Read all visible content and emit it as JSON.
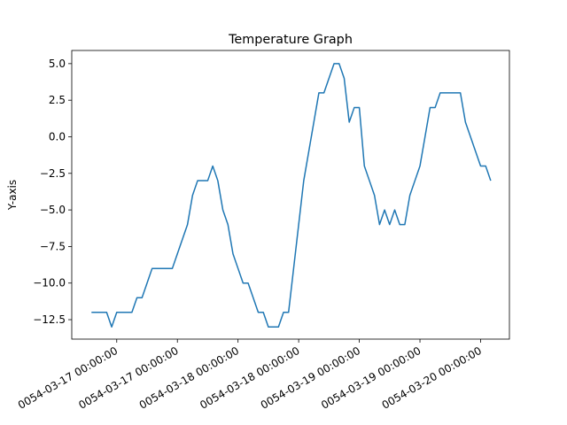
{
  "chart_data": {
    "type": "line",
    "title": "Temperature Graph",
    "y_label": "Y-axis",
    "color": "#1f77b4",
    "x": [
      -5,
      -4,
      -3,
      -2,
      -1,
      0,
      1,
      2,
      3,
      4,
      5,
      6,
      7,
      8,
      9,
      10,
      11,
      12,
      13,
      14,
      15,
      16,
      17,
      18,
      19,
      20,
      21,
      22,
      23,
      24,
      25,
      26,
      27,
      28,
      29,
      30,
      31,
      32,
      33,
      34,
      35,
      36,
      37,
      38,
      39,
      40,
      41,
      42,
      43,
      44,
      45,
      46,
      47,
      48,
      49,
      50,
      51,
      52,
      53,
      54,
      55,
      56,
      57,
      58,
      59,
      60,
      61,
      62,
      63,
      64,
      65,
      66,
      67,
      68,
      69,
      70,
      71,
      72,
      73,
      74
    ],
    "values": [
      -12,
      -12,
      -12,
      -12,
      -13,
      -12,
      -12,
      -12,
      -12,
      -11,
      -11,
      -10,
      -9,
      -9,
      -9,
      -9,
      -9,
      -8,
      -7,
      -6,
      -4,
      -3,
      -3,
      -3,
      -2,
      -3,
      -5,
      -6,
      -8,
      -9,
      -10,
      -10,
      -11,
      -12,
      -12,
      -13,
      -13,
      -13,
      -12,
      -12,
      -9,
      -6,
      -3,
      -1,
      1,
      3,
      3,
      4,
      5,
      5,
      4,
      1,
      2,
      2,
      -2,
      -3,
      -4,
      -6,
      -5,
      -6,
      -5,
      -6,
      -6,
      -4,
      -3,
      -2,
      0,
      2,
      2,
      3,
      3,
      3,
      3,
      3,
      1,
      0,
      -1,
      -2,
      -2,
      -3
    ],
    "xlim": [
      -8.9,
      77.7
    ],
    "xticks": [
      {
        "value": 0,
        "label": "0054-03-17 00:00:00"
      },
      {
        "value": 12,
        "label": "0054-03-17 00:00:00"
      },
      {
        "value": 24,
        "label": "0054-03-18 00:00:00"
      },
      {
        "value": 36,
        "label": "0054-03-18 00:00:00"
      },
      {
        "value": 48,
        "label": "0054-03-19 00:00:00"
      },
      {
        "value": 60,
        "label": "0054-03-19 00:00:00"
      },
      {
        "value": 72,
        "label": "0054-03-20 00:00:00"
      }
    ],
    "ylim": [
      -13.83,
      5.9
    ],
    "yticks": [
      {
        "value": 5,
        "label": "5.0"
      },
      {
        "value": 2.5,
        "label": "2.5"
      },
      {
        "value": 0,
        "label": "0.0"
      },
      {
        "value": -2.5,
        "label": "−2.5"
      },
      {
        "value": -5,
        "label": "−5.0"
      },
      {
        "value": -7.5,
        "label": "−7.5"
      },
      {
        "value": -10,
        "label": "−10.0"
      },
      {
        "value": -12.5,
        "label": "−12.5"
      }
    ]
  }
}
